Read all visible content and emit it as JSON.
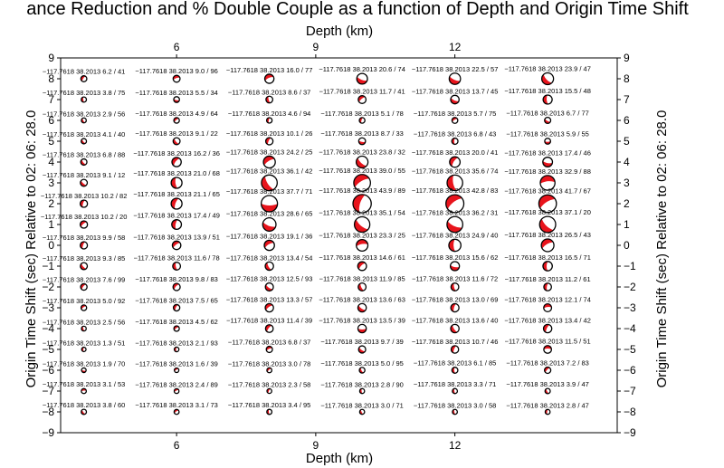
{
  "chart_data": {
    "type": "scatter",
    "title": "ance Reduction and % Double Couple as a function of Depth and Origin Time Shift",
    "xlabel": "Depth (km)",
    "ylabel": "Origin Time Shift (sec) Relative to 02: 06: 28.0",
    "xlim": [
      3.5,
      15.5
    ],
    "ylim": [
      -9,
      9
    ],
    "xticks": [
      {
        "value": 6,
        "label": "6"
      },
      {
        "value": 9,
        "label": "9"
      },
      {
        "value": 12,
        "label": "12"
      }
    ],
    "yticks": [
      {
        "value": -9,
        "label": "−9"
      },
      {
        "value": -8,
        "label": "−8"
      },
      {
        "value": -7,
        "label": "−7"
      },
      {
        "value": -6,
        "label": "−6"
      },
      {
        "value": -5,
        "label": "−5"
      },
      {
        "value": -4,
        "label": "−4"
      },
      {
        "value": -3,
        "label": "−3"
      },
      {
        "value": -2,
        "label": "−2"
      },
      {
        "value": -1,
        "label": "−1"
      },
      {
        "value": 0,
        "label": "0"
      },
      {
        "value": 1,
        "label": "1"
      },
      {
        "value": 2,
        "label": "2"
      },
      {
        "value": 3,
        "label": "3"
      },
      {
        "value": 4,
        "label": "4"
      },
      {
        "value": 5,
        "label": "5"
      },
      {
        "value": 6,
        "label": "6"
      },
      {
        "value": 7,
        "label": "7"
      },
      {
        "value": 8,
        "label": "8"
      },
      {
        "value": 9,
        "label": "9"
      }
    ],
    "grid": false,
    "depths": [
      4,
      6,
      8,
      10,
      12,
      14
    ],
    "shifts": [
      8,
      7,
      6,
      5,
      4,
      3,
      2,
      1,
      0,
      -1,
      -2,
      -3,
      -4,
      -5,
      -6,
      -7,
      -8
    ],
    "label_prefix": "−117.7618 38.2013",
    "mechanism_colors": {
      "compressional": "#e8141c",
      "dilatational": "#ffffff",
      "outline": "#000000"
    },
    "values": [
      [
        [
          6.2,
          41
        ],
        [
          9.0,
          96
        ],
        [
          16.0,
          77
        ],
        [
          20.6,
          74
        ],
        [
          22.5,
          57
        ],
        [
          23.9,
          47
        ]
      ],
      [
        [
          3.8,
          75
        ],
        [
          5.5,
          34
        ],
        [
          8.6,
          37
        ],
        [
          11.7,
          41
        ],
        [
          13.7,
          45
        ],
        [
          15.5,
          48
        ]
      ],
      [
        [
          2.9,
          56
        ],
        [
          4.9,
          64
        ],
        [
          4.6,
          94
        ],
        [
          5.1,
          78
        ],
        [
          5.7,
          75
        ],
        [
          6.7,
          77
        ]
      ],
      [
        [
          4.1,
          40
        ],
        [
          9.1,
          22
        ],
        [
          10.1,
          26
        ],
        [
          8.7,
          33
        ],
        [
          6.8,
          43
        ],
        [
          5.9,
          55
        ]
      ],
      [
        [
          6.8,
          88
        ],
        [
          16.2,
          36
        ],
        [
          24.2,
          25
        ],
        [
          23.8,
          32
        ],
        [
          20.0,
          41
        ],
        [
          17.4,
          46
        ]
      ],
      [
        [
          9.1,
          12
        ],
        [
          21.0,
          68
        ],
        [
          36.1,
          42
        ],
        [
          39.0,
          55
        ],
        [
          35.6,
          74
        ],
        [
          32.9,
          88
        ]
      ],
      [
        [
          10.2,
          82
        ],
        [
          21.1,
          65
        ],
        [
          37.7,
          71
        ],
        [
          43.9,
          89
        ],
        [
          42.8,
          83
        ],
        [
          41.7,
          67
        ]
      ],
      [
        [
          10.2,
          20
        ],
        [
          17.4,
          49
        ],
        [
          28.6,
          65
        ],
        [
          35.1,
          54
        ],
        [
          36.2,
          31
        ],
        [
          37.1,
          20
        ]
      ],
      [
        [
          9.9,
          58
        ],
        [
          13.9,
          51
        ],
        [
          19.1,
          36
        ],
        [
          23.3,
          25
        ],
        [
          24.9,
          40
        ],
        [
          26.5,
          43
        ]
      ],
      [
        [
          9.3,
          85
        ],
        [
          11.6,
          78
        ],
        [
          13.4,
          54
        ],
        [
          14.6,
          61
        ],
        [
          15.6,
          62
        ],
        [
          16.5,
          71
        ]
      ],
      [
        [
          7.6,
          99
        ],
        [
          9.8,
          83
        ],
        [
          12.5,
          93
        ],
        [
          11.9,
          85
        ],
        [
          11.6,
          72
        ],
        [
          11.2,
          61
        ]
      ],
      [
        [
          5.0,
          92
        ],
        [
          7.5,
          65
        ],
        [
          13.3,
          57
        ],
        [
          13.6,
          63
        ],
        [
          13.0,
          69
        ],
        [
          12.1,
          74
        ]
      ],
      [
        [
          2.5,
          56
        ],
        [
          4.5,
          62
        ],
        [
          11.4,
          39
        ],
        [
          13.5,
          39
        ],
        [
          13.6,
          40
        ],
        [
          13.4,
          42
        ]
      ],
      [
        [
          1.3,
          51
        ],
        [
          2.1,
          93
        ],
        [
          6.8,
          37
        ],
        [
          9.7,
          39
        ],
        [
          10.7,
          46
        ],
        [
          11.5,
          51
        ]
      ],
      [
        [
          1.9,
          70
        ],
        [
          1.6,
          39
        ],
        [
          3.0,
          78
        ],
        [
          5.0,
          95
        ],
        [
          6.1,
          85
        ],
        [
          7.2,
          83
        ]
      ],
      [
        [
          3.1,
          53
        ],
        [
          2.4,
          89
        ],
        [
          2.3,
          58
        ],
        [
          2.8,
          90
        ],
        [
          3.3,
          71
        ],
        [
          3.9,
          47
        ]
      ],
      [
        [
          3.8,
          60
        ],
        [
          3.1,
          73
        ],
        [
          3.4,
          95
        ],
        [
          3.0,
          71
        ],
        [
          3.0,
          58
        ],
        [
          2.8,
          47
        ]
      ]
    ]
  }
}
